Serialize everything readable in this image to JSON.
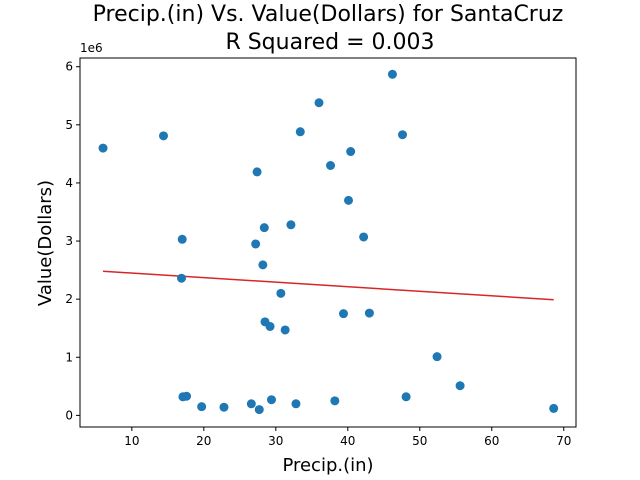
{
  "chart_data": {
    "type": "scatter",
    "title": "Precip.(in) Vs. Value(Dollars) for SantaCruz",
    "subtitle": "R Squared =  0.003",
    "xlabel": "Precip.(in)",
    "ylabel": "Value(Dollars)",
    "y_offset_label": "1e6",
    "xlim": [
      2.8,
      71.7
    ],
    "ylim": [
      -0.2,
      6.15
    ],
    "x_ticks": [
      10,
      20,
      30,
      40,
      50,
      60,
      70
    ],
    "x_tick_labels": [
      "10",
      "20",
      "30",
      "40",
      "50",
      "60",
      "70"
    ],
    "y_ticks": [
      0,
      1,
      2,
      3,
      4,
      5,
      6
    ],
    "y_tick_labels": [
      "0",
      "1",
      "2",
      "3",
      "4",
      "5",
      "6"
    ],
    "y_unit_multiplier": 1000000,
    "grid": false,
    "marker_color": "#1f77b4",
    "fit_line_color": "#d62728",
    "points": [
      {
        "x": 6.0,
        "y": 4.6
      },
      {
        "x": 14.4,
        "y": 4.81
      },
      {
        "x": 17.0,
        "y": 3.03
      },
      {
        "x": 16.9,
        "y": 2.36
      },
      {
        "x": 17.1,
        "y": 0.32
      },
      {
        "x": 17.6,
        "y": 0.33
      },
      {
        "x": 19.7,
        "y": 0.15
      },
      {
        "x": 22.8,
        "y": 0.14
      },
      {
        "x": 26.6,
        "y": 0.2
      },
      {
        "x": 27.2,
        "y": 2.95
      },
      {
        "x": 27.4,
        "y": 4.19
      },
      {
        "x": 27.7,
        "y": 0.1
      },
      {
        "x": 28.2,
        "y": 2.59
      },
      {
        "x": 28.4,
        "y": 3.23
      },
      {
        "x": 28.5,
        "y": 1.61
      },
      {
        "x": 29.2,
        "y": 1.53
      },
      {
        "x": 29.4,
        "y": 0.27
      },
      {
        "x": 30.7,
        "y": 2.1
      },
      {
        "x": 31.3,
        "y": 1.47
      },
      {
        "x": 32.1,
        "y": 3.28
      },
      {
        "x": 32.8,
        "y": 0.2
      },
      {
        "x": 33.4,
        "y": 4.88
      },
      {
        "x": 36.0,
        "y": 5.38
      },
      {
        "x": 37.6,
        "y": 4.3
      },
      {
        "x": 38.2,
        "y": 0.25
      },
      {
        "x": 39.4,
        "y": 1.75
      },
      {
        "x": 40.1,
        "y": 3.7
      },
      {
        "x": 40.4,
        "y": 4.54
      },
      {
        "x": 42.2,
        "y": 3.07
      },
      {
        "x": 43.0,
        "y": 1.76
      },
      {
        "x": 46.2,
        "y": 5.87
      },
      {
        "x": 47.6,
        "y": 4.83
      },
      {
        "x": 48.1,
        "y": 0.32
      },
      {
        "x": 52.4,
        "y": 1.01
      },
      {
        "x": 55.6,
        "y": 0.51
      },
      {
        "x": 68.6,
        "y": 0.12
      }
    ],
    "fit_line": {
      "x": [
        6.0,
        68.6
      ],
      "y": [
        2.48,
        1.99
      ]
    }
  }
}
